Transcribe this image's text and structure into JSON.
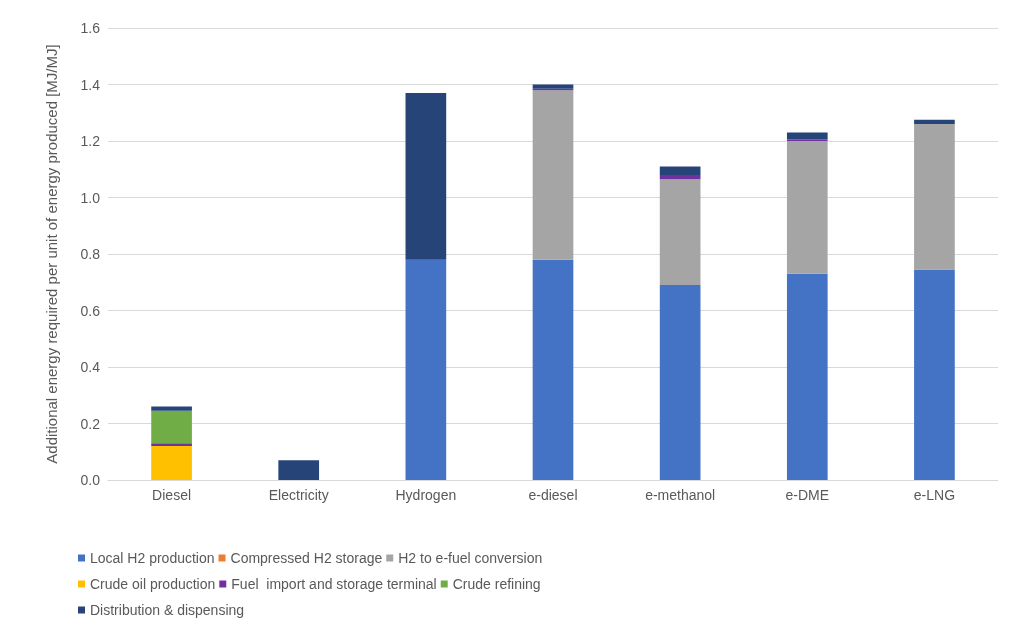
{
  "chart_data": {
    "type": "bar",
    "stacked": true,
    "ylabel": "Additional energy required per unit of energy produced [MJ/MJ]",
    "categories": [
      "Diesel",
      "Electricity",
      "Hydrogen",
      "e-diesel",
      "e-methanol",
      "e-DME",
      "e-LNG"
    ],
    "series": [
      {
        "name": "Local H2 production",
        "color": "#4472c4",
        "values": [
          0,
          0,
          0.78,
          0.78,
          0.69,
          0.73,
          0.745
        ]
      },
      {
        "name": "Compressed H2 storage",
        "color": "#ed7d31",
        "values": [
          0,
          0,
          0,
          0,
          0,
          0,
          0
        ]
      },
      {
        "name": "H2 to e-fuel conversion",
        "color": "#a5a5a5",
        "values": [
          0,
          0,
          0,
          0.6,
          0.375,
          0.47,
          0.515
        ]
      },
      {
        "name": "Crude oil production",
        "color": "#ffc000",
        "values": [
          0.12,
          0,
          0,
          0,
          0,
          0,
          0
        ]
      },
      {
        "name": "Fuel  import and storage terminal",
        "color": "#7030a0",
        "values": [
          0.01,
          0,
          0,
          0.005,
          0.015,
          0.005,
          0
        ]
      },
      {
        "name": "Crude refining",
        "color": "#70ad47",
        "values": [
          0.115,
          0,
          0,
          0,
          0,
          0,
          0
        ]
      },
      {
        "name": "Distribution & dispensing",
        "color": "#264478",
        "values": [
          0.015,
          0.07,
          0.59,
          0.015,
          0.03,
          0.025,
          0.015
        ]
      }
    ],
    "ylim": [
      0,
      1.6
    ],
    "yticks": [
      {
        "value": 0,
        "label": "0.0"
      },
      {
        "value": 0.2,
        "label": "0.2"
      },
      {
        "value": 0.4,
        "label": "0.4"
      },
      {
        "value": 0.6,
        "label": "0.6"
      },
      {
        "value": 0.8,
        "label": "0.8"
      },
      {
        "value": 1,
        "label": "1.0"
      },
      {
        "value": 1.2,
        "label": "1.2"
      },
      {
        "value": 1.4,
        "label": "1.4"
      },
      {
        "value": 1.6,
        "label": "1.6"
      }
    ],
    "grid": "y",
    "legend": "bottom"
  }
}
